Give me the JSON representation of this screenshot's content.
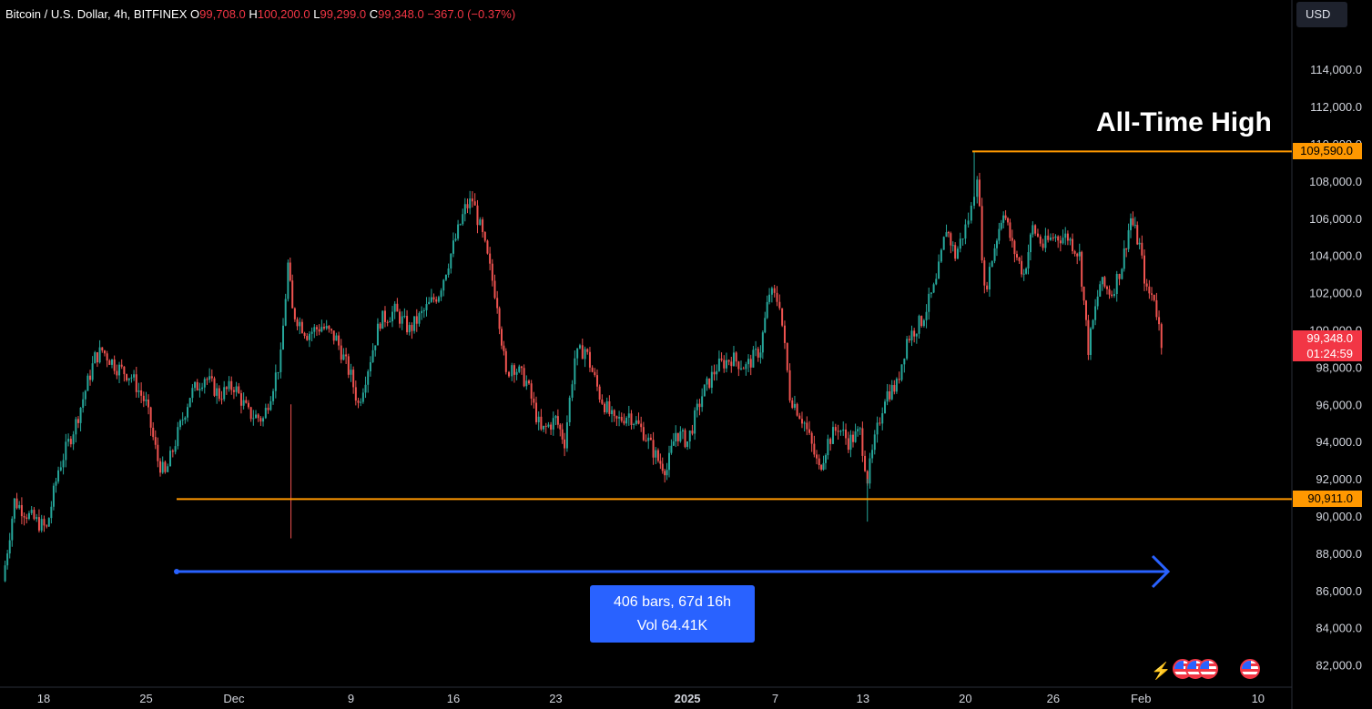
{
  "header": {
    "symbol": "Bitcoin / U.S. Dollar, 4h, BITFINEX",
    "o_label": "O",
    "o_value": "99,708.0",
    "h_label": "H",
    "h_value": "100,200.0",
    "l_label": "L",
    "l_value": "99,299.0",
    "c_label": "C",
    "c_value": "99,348.0",
    "change": "−367.0 (−0.37%)"
  },
  "currency_label": "USD",
  "annotation": {
    "ath_label": "All-Time High"
  },
  "levels": {
    "high": {
      "value": 109590,
      "label": "109,590.0"
    },
    "low": {
      "value": 90911,
      "label": "90,911.0"
    }
  },
  "current_price": {
    "label": "99,348.0",
    "countdown": "01:24:59"
  },
  "measure": {
    "line1": "406 bars, 67d 16h",
    "line2": "Vol 64.41K"
  },
  "colors": {
    "background": "#000000",
    "up": "#26a69a",
    "down": "#ef5350",
    "level_line": "#ff9800",
    "measure": "#2962ff",
    "axis_text": "#d1d4dc"
  },
  "icons": [
    "spark-bolt-icon",
    "us-flag-icon",
    "us-flag-icon",
    "us-flag-icon",
    "us-flag-icon"
  ],
  "chart_data": {
    "type": "candlestick",
    "title": "Bitcoin / U.S. Dollar, 4h, BITFINEX",
    "ylim": [
      81000,
      116000
    ],
    "grid": false,
    "y_ticks": [
      82000,
      84000,
      86000,
      88000,
      90000,
      92000,
      94000,
      96000,
      98000,
      100000,
      102000,
      104000,
      106000,
      108000,
      110000,
      112000,
      114000
    ],
    "y_tick_labels": [
      "82,000.0",
      "84,000.0",
      "86,000.0",
      "88,000.0",
      "90,000.0",
      "92,000.0",
      "94,000.0",
      "96,000.0",
      "98,000.0",
      "100,000.0",
      "102,000.0",
      "104,000.0",
      "106,000.0",
      "108,000.0",
      "110,000.0",
      "112,000.0",
      "114,000.0"
    ],
    "x_ticks": [
      {
        "label": "18",
        "day": 0
      },
      {
        "label": "25",
        "day": 7
      },
      {
        "label": "Dec",
        "day": 13
      },
      {
        "label": "9",
        "day": 21
      },
      {
        "label": "16",
        "day": 28
      },
      {
        "label": "23",
        "day": 35
      },
      {
        "label": "2025",
        "day": 44,
        "bold": true
      },
      {
        "label": "7",
        "day": 50
      },
      {
        "label": "13",
        "day": 56
      },
      {
        "label": "20",
        "day": 63
      },
      {
        "label": "26",
        "day": 69
      },
      {
        "label": "Feb",
        "day": 75
      },
      {
        "label": "10",
        "day": 83
      }
    ],
    "series": [
      {
        "day": -2.8,
        "close": 86500
      },
      {
        "day": -2.0,
        "close": 90800
      },
      {
        "day": -1.0,
        "close": 90000
      },
      {
        "day": 0.2,
        "close": 89300
      },
      {
        "day": 1.0,
        "close": 92500
      },
      {
        "day": 2.2,
        "close": 95000
      },
      {
        "day": 3.5,
        "close": 98500
      },
      {
        "day": 4.0,
        "close": 98900
      },
      {
        "day": 5.0,
        "close": 98000
      },
      {
        "day": 6.0,
        "close": 97500
      },
      {
        "day": 7.0,
        "close": 96000
      },
      {
        "day": 7.8,
        "close": 93000
      },
      {
        "day": 8.3,
        "close": 92200
      },
      {
        "day": 9.0,
        "close": 94000
      },
      {
        "day": 10.0,
        "close": 96500
      },
      {
        "day": 11.0,
        "close": 97500
      },
      {
        "day": 12.0,
        "close": 96500
      },
      {
        "day": 13.0,
        "close": 97000
      },
      {
        "day": 14.0,
        "close": 95500
      },
      {
        "day": 15.0,
        "close": 95200
      },
      {
        "day": 16.2,
        "close": 98500
      },
      {
        "day": 16.7,
        "close": 103500
      },
      {
        "day": 17.0,
        "close": 101000
      },
      {
        "day": 18.0,
        "close": 99800
      },
      {
        "day": 19.0,
        "close": 100200
      },
      {
        "day": 20.0,
        "close": 99500
      },
      {
        "day": 21.0,
        "close": 97500
      },
      {
        "day": 21.5,
        "close": 96000
      },
      {
        "day": 22.0,
        "close": 97500
      },
      {
        "day": 23.0,
        "close": 100500
      },
      {
        "day": 24.0,
        "close": 101000
      },
      {
        "day": 25.0,
        "close": 100000
      },
      {
        "day": 26.0,
        "close": 101000
      },
      {
        "day": 27.0,
        "close": 102000
      },
      {
        "day": 28.0,
        "close": 104500
      },
      {
        "day": 28.8,
        "close": 106500
      },
      {
        "day": 29.3,
        "close": 107000
      },
      {
        "day": 30.0,
        "close": 105000
      },
      {
        "day": 31.0,
        "close": 101500
      },
      {
        "day": 31.6,
        "close": 97500
      },
      {
        "day": 32.0,
        "close": 98200
      },
      {
        "day": 33.0,
        "close": 97200
      },
      {
        "day": 34.0,
        "close": 94500
      },
      {
        "day": 35.0,
        "close": 95200
      },
      {
        "day": 35.6,
        "close": 94000
      },
      {
        "day": 36.3,
        "close": 98500
      },
      {
        "day": 37.0,
        "close": 99000
      },
      {
        "day": 38.0,
        "close": 96500
      },
      {
        "day": 39.0,
        "close": 95000
      },
      {
        "day": 40.0,
        "close": 95500
      },
      {
        "day": 41.0,
        "close": 94500
      },
      {
        "day": 42.0,
        "close": 93000
      },
      {
        "day": 42.6,
        "close": 92500
      },
      {
        "day": 43.2,
        "close": 94500
      },
      {
        "day": 44.0,
        "close": 94000
      },
      {
        "day": 45.0,
        "close": 96500
      },
      {
        "day": 46.0,
        "close": 98000
      },
      {
        "day": 47.0,
        "close": 98500
      },
      {
        "day": 48.0,
        "close": 98000
      },
      {
        "day": 49.0,
        "close": 99000
      },
      {
        "day": 49.6,
        "close": 102000
      },
      {
        "day": 50.3,
        "close": 101500
      },
      {
        "day": 51.0,
        "close": 96500
      },
      {
        "day": 52.0,
        "close": 95000
      },
      {
        "day": 53.0,
        "close": 92500
      },
      {
        "day": 53.6,
        "close": 94000
      },
      {
        "day": 54.3,
        "close": 94800
      },
      {
        "day": 55.0,
        "close": 94000
      },
      {
        "day": 55.8,
        "close": 94500
      },
      {
        "day": 56.3,
        "close": 92000
      },
      {
        "day": 56.8,
        "close": 94000
      },
      {
        "day": 57.5,
        "close": 96500
      },
      {
        "day": 58.3,
        "close": 97000
      },
      {
        "day": 59.0,
        "close": 99500
      },
      {
        "day": 60.0,
        "close": 100500
      },
      {
        "day": 61.0,
        "close": 102500
      },
      {
        "day": 61.7,
        "close": 105500
      },
      {
        "day": 62.3,
        "close": 104000
      },
      {
        "day": 63.0,
        "close": 105500
      },
      {
        "day": 63.4,
        "close": 106500
      },
      {
        "day": 63.8,
        "close": 108500
      },
      {
        "day": 64.3,
        "close": 102000
      },
      {
        "day": 65.0,
        "close": 104500
      },
      {
        "day": 65.6,
        "close": 106500
      },
      {
        "day": 66.2,
        "close": 104500
      },
      {
        "day": 67.0,
        "close": 103000
      },
      {
        "day": 67.6,
        "close": 105500
      },
      {
        "day": 68.3,
        "close": 104500
      },
      {
        "day": 69.0,
        "close": 105000
      },
      {
        "day": 70.0,
        "close": 105000
      },
      {
        "day": 70.8,
        "close": 104000
      },
      {
        "day": 71.4,
        "close": 99000
      },
      {
        "day": 72.2,
        "close": 102500
      },
      {
        "day": 73.0,
        "close": 102000
      },
      {
        "day": 73.7,
        "close": 103500
      },
      {
        "day": 74.3,
        "close": 106000
      },
      {
        "day": 74.9,
        "close": 104500
      },
      {
        "day": 75.4,
        "close": 102000
      },
      {
        "day": 75.9,
        "close": 101800
      },
      {
        "day": 76.4,
        "close": 99348
      }
    ],
    "annotations": [
      {
        "text": "All-Time High",
        "value": 109590
      },
      {
        "text": "109,590.0",
        "value": 109590
      },
      {
        "text": "90,911.0",
        "value": 90911
      }
    ]
  }
}
